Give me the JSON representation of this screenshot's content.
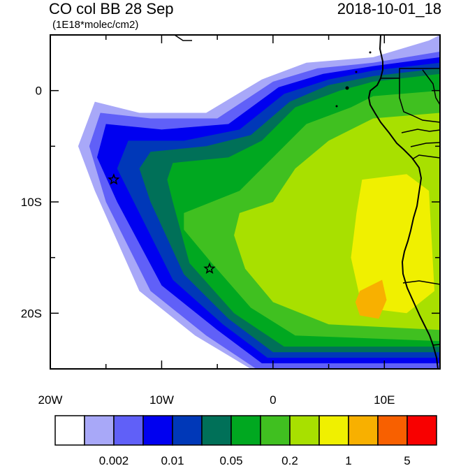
{
  "title": "CO col BB 28 Sep",
  "subtitle": "(1E18*molec/cm2)",
  "datetime": "2018-10-01_18",
  "axes": {
    "lon_range": [
      -20,
      15
    ],
    "lat_range": [
      -25,
      5
    ],
    "lon_ticks": [
      {
        "value": -20,
        "label": "20W"
      },
      {
        "value": -10,
        "label": "10W"
      },
      {
        "value": 0,
        "label": "0"
      },
      {
        "value": 10,
        "label": "10E"
      }
    ],
    "lat_ticks": [
      {
        "value": 0,
        "label": "0"
      },
      {
        "value": -10,
        "label": "10S"
      },
      {
        "value": -20,
        "label": "20S"
      }
    ]
  },
  "markers": [
    {
      "name": "star-marker",
      "lon": -14.3,
      "lat": -8.0
    },
    {
      "name": "star-marker",
      "lon": -5.7,
      "lat": -16.0
    }
  ],
  "colorbar": {
    "colors": [
      "#ffffff",
      "#a8a8f8",
      "#6060f8",
      "#0000f0",
      "#0038b8",
      "#007058",
      "#00a820",
      "#40c020",
      "#a8e000",
      "#f0f000",
      "#f8b000",
      "#f86000",
      "#f80000"
    ],
    "labels": [
      {
        "after_box": 2,
        "text": "0.002"
      },
      {
        "after_box": 4,
        "text": "0.01"
      },
      {
        "after_box": 6,
        "text": "0.05"
      },
      {
        "after_box": 8,
        "text": "0.2"
      },
      {
        "after_box": 10,
        "text": "1"
      },
      {
        "after_box": 12,
        "text": "5"
      }
    ]
  },
  "chart_data": {
    "type": "heatmap",
    "title": "CO col BB 28 Sep",
    "units": "(1E18*molec/cm2)",
    "valid_time": "2018-10-01_18",
    "xlim": [
      -20,
      15
    ],
    "ylim": [
      -25,
      5
    ],
    "levels": [
      0.002,
      0.01,
      0.05,
      0.2,
      1,
      5
    ],
    "regions_by_level": [
      {
        "level_index": 1,
        "lon_lat": [
          [
            -16,
            -1
          ],
          [
            -12,
            -2
          ],
          [
            -6,
            -2
          ],
          [
            -1,
            1
          ],
          [
            3,
            2.5
          ],
          [
            9,
            3
          ],
          [
            14,
            4.5
          ],
          [
            15,
            5
          ],
          [
            15,
            -25
          ],
          [
            -2,
            -25
          ],
          [
            -7,
            -22
          ],
          [
            -12,
            -18
          ],
          [
            -16,
            -9
          ],
          [
            -17.5,
            -5
          ]
        ]
      },
      {
        "level_index": 2,
        "lon_lat": [
          [
            -15.5,
            -2
          ],
          [
            -11,
            -2.5
          ],
          [
            -5,
            -2.5
          ],
          [
            0,
            0.8
          ],
          [
            4,
            2
          ],
          [
            9,
            2.5
          ],
          [
            15,
            3.5
          ],
          [
            15,
            -25
          ],
          [
            -1.5,
            -25
          ],
          [
            -6,
            -22
          ],
          [
            -11,
            -18
          ],
          [
            -15,
            -10
          ],
          [
            -16.5,
            -5
          ]
        ]
      },
      {
        "level_index": 3,
        "lon_lat": [
          [
            -15,
            -3
          ],
          [
            -10,
            -3.5
          ],
          [
            -4,
            -3
          ],
          [
            0.5,
            0.3
          ],
          [
            4.5,
            1.5
          ],
          [
            9,
            2.2
          ],
          [
            15,
            3
          ],
          [
            15,
            -24.5
          ],
          [
            -1,
            -24.5
          ],
          [
            -5,
            -21.5
          ],
          [
            -10,
            -17.5
          ],
          [
            -14,
            -10
          ],
          [
            -15.8,
            -6
          ]
        ]
      },
      {
        "level_index": 4,
        "lon_lat": [
          [
            -13,
            -4.5
          ],
          [
            -8,
            -4.5
          ],
          [
            -3,
            -3.5
          ],
          [
            1,
            -0.3
          ],
          [
            5,
            1
          ],
          [
            9,
            1.8
          ],
          [
            15,
            2.5
          ],
          [
            15,
            -24
          ],
          [
            -0.5,
            -24
          ],
          [
            -4.5,
            -21
          ],
          [
            -9,
            -17
          ],
          [
            -12.5,
            -10
          ],
          [
            -14,
            -7
          ]
        ]
      },
      {
        "level_index": 5,
        "lon_lat": [
          [
            -11,
            -5.5
          ],
          [
            -6,
            -5
          ],
          [
            -2,
            -4
          ],
          [
            1.5,
            -1
          ],
          [
            5,
            0.5
          ],
          [
            9,
            1.3
          ],
          [
            15,
            2
          ],
          [
            15,
            -23.5
          ],
          [
            0,
            -23.5
          ],
          [
            -4,
            -20.5
          ],
          [
            -8,
            -16.5
          ],
          [
            -11,
            -10
          ],
          [
            -12,
            -7
          ]
        ]
      },
      {
        "level_index": 6,
        "lon_lat": [
          [
            -9,
            -6.5
          ],
          [
            -4,
            -6
          ],
          [
            -1,
            -4.5
          ],
          [
            2,
            -1.5
          ],
          [
            6,
            0
          ],
          [
            9,
            0.8
          ],
          [
            15,
            1.5
          ],
          [
            15,
            -23
          ],
          [
            1,
            -23
          ],
          [
            -3.5,
            -20
          ],
          [
            -7.5,
            -15.5
          ],
          [
            -9,
            -10
          ],
          [
            -9.5,
            -8
          ]
        ]
      },
      {
        "level_index": 7,
        "lon_lat": [
          [
            -8,
            -11
          ],
          [
            -3,
            -9
          ],
          [
            0,
            -6
          ],
          [
            3,
            -3
          ],
          [
            7,
            -1.5
          ],
          [
            9,
            -0.5
          ],
          [
            15,
            0
          ],
          [
            15,
            -22.5
          ],
          [
            2,
            -22
          ],
          [
            -2,
            -19.5
          ],
          [
            -5.5,
            -15.5
          ],
          [
            -8,
            -12.5
          ]
        ]
      },
      {
        "level_index": 8,
        "lon_lat": [
          [
            -3,
            -11
          ],
          [
            0,
            -10
          ],
          [
            2,
            -7
          ],
          [
            5,
            -4.5
          ],
          [
            9,
            -2.5
          ],
          [
            15,
            -2
          ],
          [
            15,
            -21.5
          ],
          [
            5,
            -21
          ],
          [
            0,
            -19
          ],
          [
            -2.5,
            -16
          ],
          [
            -3.5,
            -13
          ]
        ]
      },
      {
        "level_index": 9,
        "lon_lat": [
          [
            8,
            -8
          ],
          [
            12,
            -7.5
          ],
          [
            14,
            -9
          ],
          [
            14.5,
            -18
          ],
          [
            12,
            -20
          ],
          [
            8,
            -19.5
          ],
          [
            7,
            -15
          ],
          [
            7.5,
            -11
          ]
        ]
      },
      {
        "level_index": 10,
        "lon_lat": [
          [
            7.8,
            -18
          ],
          [
            9.8,
            -17
          ],
          [
            10.2,
            -18.8
          ],
          [
            9.5,
            -20.5
          ],
          [
            7.8,
            -20.2
          ],
          [
            7.4,
            -19
          ]
        ]
      }
    ]
  }
}
